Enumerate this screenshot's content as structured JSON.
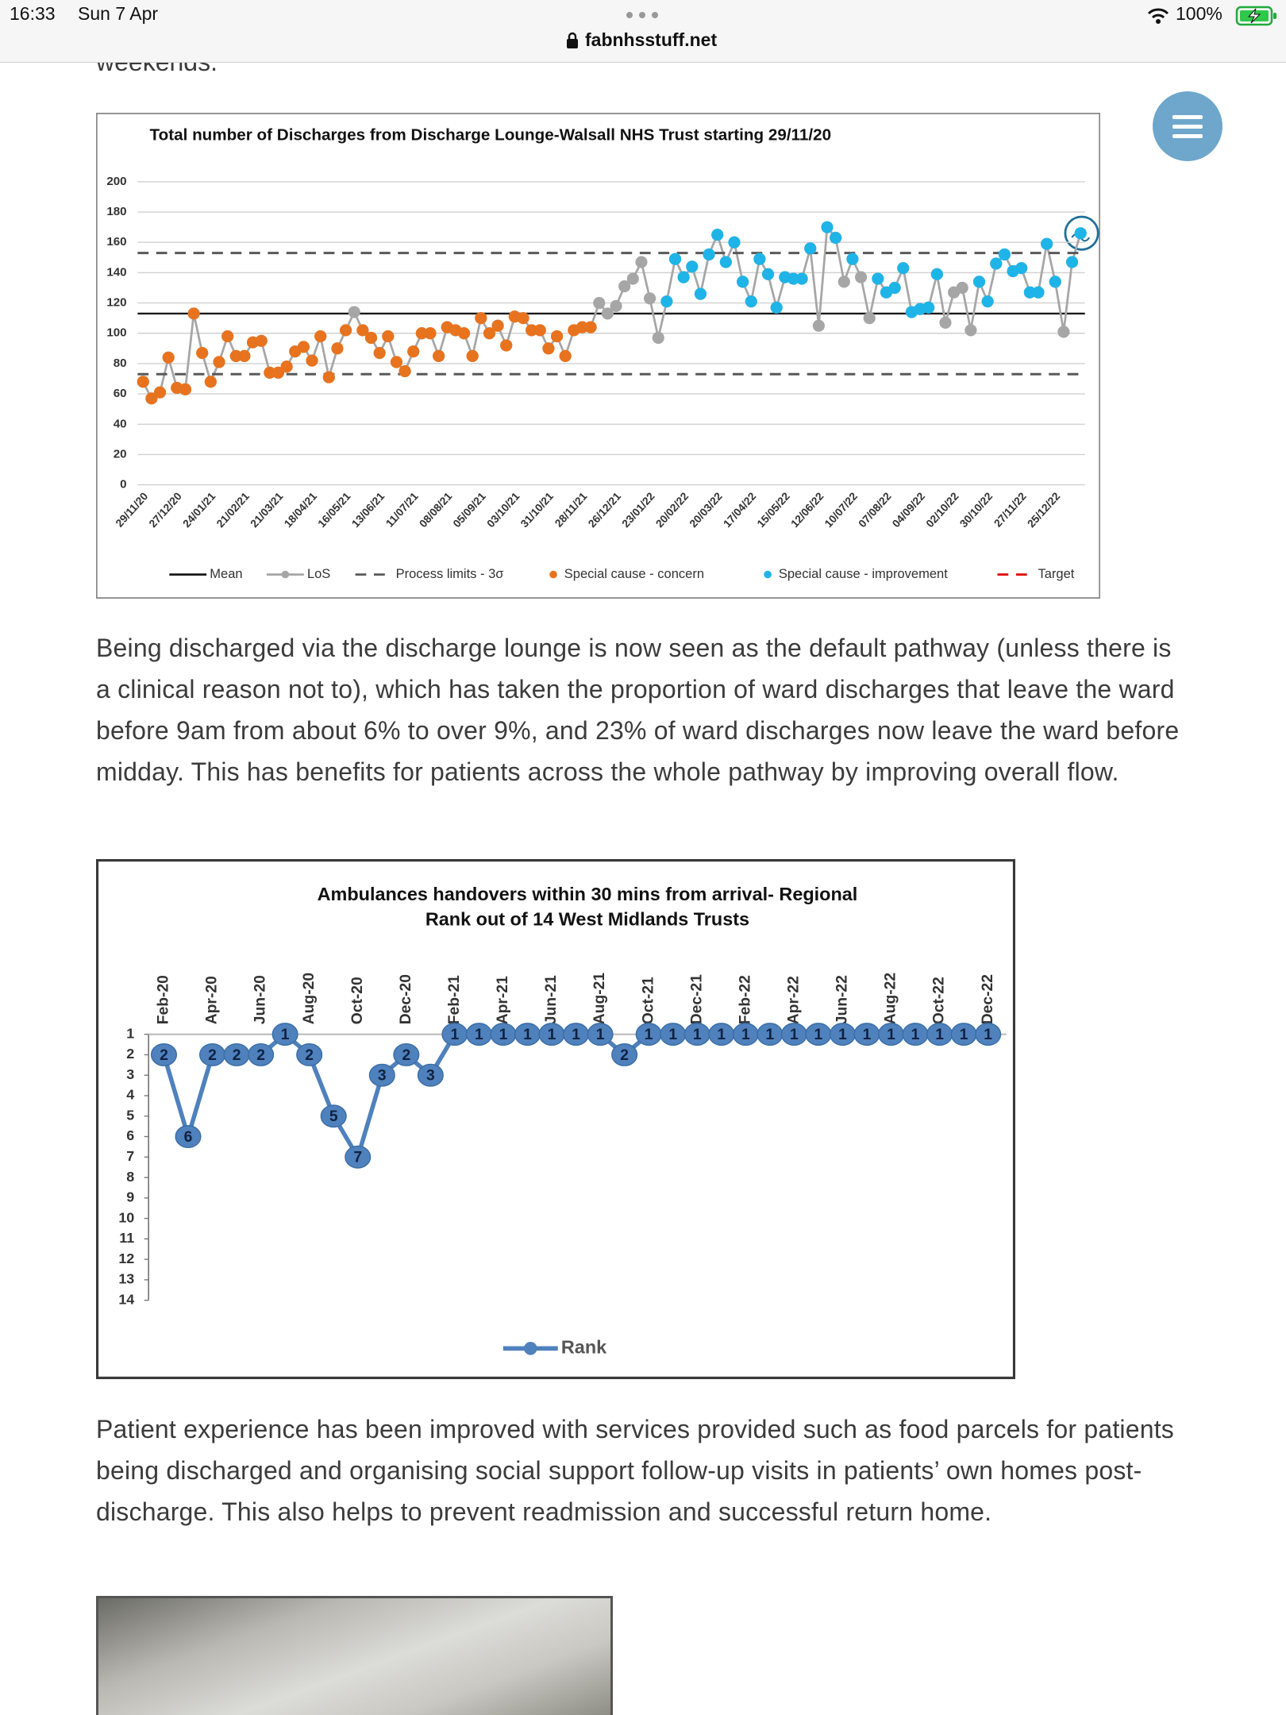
{
  "status_bar": {
    "time": "16:33",
    "date": "Sun 7 Apr",
    "battery": "100%"
  },
  "address_bar": {
    "url": "fabnhsstuff.net"
  },
  "article": {
    "fragment": "weekends.",
    "paragraphs": [
      "Being discharged via the discharge lounge is now seen as the default pathway (unless there is a clinical reason not to), which has taken the proportion of ward discharges that leave the ward before 9am from about 6% to over 9%, and 23% of ward discharges now leave the ward before midday. This has benefits for patients across the whole pathway by improving overall flow.",
      "Patient experience has been improved with services provided such as food parcels for patients being discharged and organising social support follow-up visits in patients’ own homes post-discharge. This also helps to prevent readmission and successful return home."
    ]
  },
  "chart_data": [
    {
      "type": "line",
      "title": "Total number of Discharges from Discharge Lounge-Walsall NHS Trust starting 29/11/20",
      "categories": [
        "29/11/20",
        null,
        null,
        null,
        "27/12/20",
        null,
        null,
        null,
        "24/01/21",
        null,
        null,
        null,
        "21/02/21",
        null,
        null,
        null,
        "21/03/21",
        null,
        null,
        null,
        "18/04/21",
        null,
        null,
        null,
        "16/05/21",
        null,
        null,
        null,
        "13/06/21",
        null,
        null,
        null,
        "11/07/21",
        null,
        null,
        null,
        "08/08/21",
        null,
        null,
        null,
        "05/09/21",
        null,
        null,
        null,
        "03/10/21",
        null,
        null,
        null,
        "31/10/21",
        null,
        null,
        null,
        "28/11/21",
        null,
        null,
        null,
        "26/12/21",
        null,
        null,
        null,
        "23/01/22",
        null,
        null,
        null,
        "20/02/22",
        null,
        null,
        null,
        "20/03/22",
        null,
        null,
        null,
        "17/04/22",
        null,
        null,
        null,
        "15/05/22",
        null,
        null,
        null,
        "12/06/22",
        null,
        null,
        null,
        "10/07/22",
        null,
        null,
        null,
        "07/08/22",
        null,
        null,
        null,
        "04/09/22",
        null,
        null,
        null,
        "02/10/22",
        null,
        null,
        null,
        "30/10/22",
        null,
        null,
        null,
        "27/11/22",
        null,
        null,
        null,
        "25/12/22",
        null,
        null,
        null
      ],
      "ylim": [
        0,
        200
      ],
      "yticks": [
        0,
        20,
        40,
        60,
        80,
        100,
        120,
        140,
        160,
        180,
        200
      ],
      "grid": true,
      "legend": "bottom",
      "series": [
        {
          "name": "Mean",
          "color": "#1a1a1a",
          "line_style": "solid",
          "level": 113
        },
        {
          "name": "LoS",
          "color": "#a6a6a6",
          "line_style": "solid",
          "marker": "circle",
          "values": [
            68,
            57,
            61,
            84,
            64,
            63,
            113,
            87,
            68,
            81,
            98,
            85,
            85,
            94,
            95,
            74,
            74,
            78,
            88,
            91,
            82,
            98,
            71,
            90,
            102,
            114,
            102,
            97,
            87,
            98,
            81,
            75,
            88,
            100,
            100,
            85,
            104,
            102,
            100,
            85,
            110,
            100,
            105,
            92,
            111,
            110,
            102,
            102,
            90,
            98,
            85,
            102,
            104,
            104,
            120,
            113,
            118,
            131,
            136,
            147,
            123,
            97,
            121,
            149,
            137,
            144,
            126,
            152,
            165,
            147,
            160,
            134,
            121,
            149,
            139,
            117,
            137,
            136,
            136,
            156,
            105,
            170,
            163,
            134,
            149,
            137,
            110,
            136,
            127,
            130,
            143,
            114,
            116,
            117,
            139,
            107,
            127,
            130,
            102,
            134,
            121,
            146,
            152,
            141,
            143,
            127,
            127,
            159,
            134,
            101,
            147,
            166
          ]
        },
        {
          "name": "Process limits - 3σ",
          "color": "#595959",
          "line_style": "dashed",
          "levels": [
            153,
            73
          ]
        },
        {
          "name": "Special cause - concern",
          "color": "#e8731e",
          "line_style": "none",
          "marker": "circle",
          "values": [
            68,
            57,
            61,
            84,
            64,
            63,
            113,
            87,
            68,
            81,
            98,
            85,
            85,
            94,
            95,
            74,
            74,
            78,
            88,
            91,
            82,
            98,
            71,
            90,
            102,
            null,
            102,
            97,
            87,
            98,
            81,
            75,
            88,
            100,
            100,
            85,
            104,
            102,
            100,
            85,
            110,
            100,
            105,
            92,
            111,
            110,
            102,
            102,
            90,
            98,
            85,
            102,
            104,
            104,
            null,
            null,
            null,
            null,
            null,
            null,
            null,
            null,
            null,
            null,
            null,
            null,
            null,
            null,
            null,
            null,
            null,
            null,
            null,
            null,
            null,
            null,
            null,
            null,
            null,
            null,
            null,
            null,
            null,
            null,
            null,
            null,
            null,
            null,
            null,
            null,
            null,
            null,
            null,
            null,
            null,
            null,
            null,
            null,
            null,
            null,
            null,
            null,
            null,
            null,
            null,
            null,
            null,
            null,
            null,
            null,
            null,
            null
          ]
        },
        {
          "name": "Special cause - improvement",
          "color": "#1fb4e8",
          "line_style": "none",
          "marker": "circle",
          "values": [
            null,
            null,
            null,
            null,
            null,
            null,
            null,
            null,
            null,
            null,
            null,
            null,
            null,
            null,
            null,
            null,
            null,
            null,
            null,
            null,
            null,
            null,
            null,
            null,
            null,
            null,
            null,
            null,
            null,
            null,
            null,
            null,
            null,
            null,
            null,
            null,
            null,
            null,
            null,
            null,
            null,
            null,
            null,
            null,
            null,
            null,
            null,
            null,
            null,
            null,
            null,
            null,
            null,
            null,
            null,
            null,
            null,
            null,
            null,
            null,
            null,
            null,
            121,
            149,
            137,
            144,
            126,
            152,
            165,
            147,
            160,
            134,
            121,
            149,
            139,
            117,
            137,
            136,
            136,
            156,
            null,
            170,
            163,
            null,
            149,
            null,
            null,
            136,
            127,
            130,
            143,
            114,
            116,
            117,
            139,
            null,
            null,
            null,
            null,
            134,
            121,
            146,
            152,
            141,
            143,
            127,
            127,
            159,
            134,
            null,
            147,
            166
          ]
        },
        {
          "name": "Target",
          "color": "#e00000",
          "line_style": "dashed"
        }
      ]
    },
    {
      "type": "line",
      "title": [
        "Ambulances handovers within 30 mins from arrival- Regional",
        "Rank out of 14 West Midlands Trusts"
      ],
      "categories": [
        "Feb-20",
        null,
        "Apr-20",
        null,
        "Jun-20",
        null,
        "Aug-20",
        null,
        "Oct-20",
        null,
        "Dec-20",
        null,
        "Feb-21",
        null,
        "Apr-21",
        null,
        "Jun-21",
        null,
        "Aug-21",
        null,
        "Oct-21",
        null,
        "Dec-21",
        null,
        "Feb-22",
        null,
        "Apr-22",
        null,
        "Jun-22",
        null,
        "Aug-22",
        null,
        "Oct-22",
        null,
        "Dec-22"
      ],
      "ylim": [
        1,
        14
      ],
      "yticks": [
        1,
        2,
        3,
        4,
        5,
        6,
        7,
        8,
        9,
        10,
        11,
        12,
        13,
        14
      ],
      "y_inverted": true,
      "grid": false,
      "data_labels": true,
      "legend": "bottom",
      "series": [
        {
          "name": "Rank",
          "color": "#4f81bd",
          "line_style": "solid",
          "marker": "circle",
          "values": [
            2,
            6,
            2,
            2,
            2,
            1,
            2,
            5,
            7,
            3,
            2,
            3,
            1,
            1,
            1,
            1,
            1,
            1,
            1,
            2,
            1,
            1,
            1,
            1,
            1,
            1,
            1,
            1,
            1,
            1,
            1,
            1,
            1,
            1,
            1
          ]
        }
      ]
    }
  ]
}
